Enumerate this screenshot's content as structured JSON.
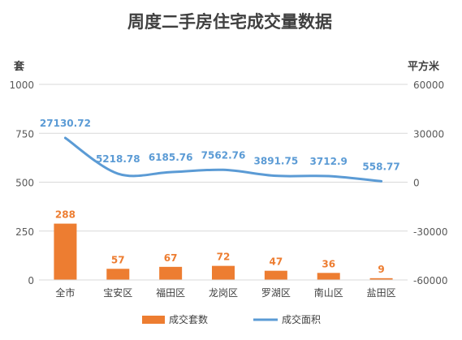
{
  "chart_data": {
    "type": "bar",
    "title": "周度二手房住宅成交量数据",
    "y_left_label": "套",
    "y_right_label": "平方米",
    "categories": [
      "全市",
      "宝安区",
      "福田区",
      "龙岗区",
      "罗湖区",
      "南山区",
      "盐田区"
    ],
    "series": [
      {
        "name": "成交套数",
        "type": "bar",
        "axis": "left",
        "values": [
          288,
          57,
          67,
          72,
          47,
          36,
          9
        ],
        "labels": [
          "288",
          "57",
          "67",
          "72",
          "47",
          "36",
          "9"
        ]
      },
      {
        "name": "成交面积",
        "type": "line",
        "axis": "right",
        "values": [
          27130.72,
          5218.78,
          6185.76,
          7562.76,
          3891.75,
          3712.9,
          558.77
        ],
        "labels": [
          "27130.72",
          "5218.78",
          "6185.76",
          "7562.76",
          "3891.75",
          "3712.9",
          "558.77"
        ]
      }
    ],
    "y_left": {
      "min": 0,
      "max": 1000,
      "ticks": [
        0,
        250,
        500,
        750,
        1000
      ]
    },
    "y_right": {
      "min": -60000,
      "max": 60000,
      "ticks": [
        -60000,
        -30000,
        0,
        30000,
        60000
      ]
    },
    "grid": true,
    "legend_position": "bottom",
    "colors": {
      "bar": "#ED7D31",
      "line": "#5B9BD5",
      "title": "#404040",
      "axis_text": "#595959",
      "grid": "#D9D9D9"
    }
  }
}
